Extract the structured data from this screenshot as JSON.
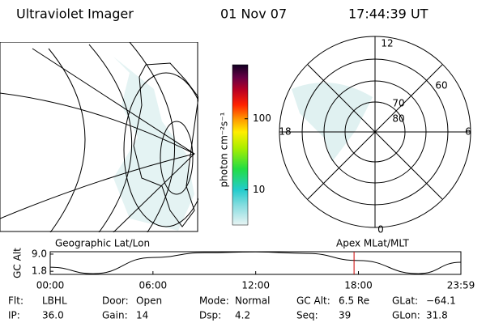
{
  "header": {
    "instrument": "Ultraviolet Imager",
    "date": "01 Nov 07",
    "time": "17:44:39 UT"
  },
  "colorbar": {
    "label": "photon cm⁻²s⁻¹",
    "scale": "log",
    "lim": [
      3.2,
      575
    ],
    "ticks": [
      10,
      100
    ]
  },
  "polar": {
    "mlt_labels": [
      "12",
      "6",
      "0",
      "18"
    ],
    "lat_labels": [
      60,
      70,
      80
    ]
  },
  "panel_labels": {
    "left": "Geographic Lat/Lon",
    "right": "Apex MLat/MLT"
  },
  "altitude_chart": {
    "type": "line",
    "y_label": "GC Alt",
    "x": [
      0,
      2.5,
      6,
      9,
      12,
      15,
      18,
      21.5,
      23.983
    ],
    "values": [
      3.5,
      0.8,
      7.6,
      9.6,
      9.9,
      9.3,
      6.3,
      0.8,
      5.6
    ],
    "xlim": [
      0,
      23.983
    ],
    "ylim": [
      0.5,
      10
    ],
    "xticks": [
      {
        "value": 0,
        "label": "00:00"
      },
      {
        "value": 6,
        "label": "06:00"
      },
      {
        "value": 12,
        "label": "12:00"
      },
      {
        "value": 18,
        "label": "18:00"
      },
      {
        "value": 23.983,
        "label": "23:59"
      }
    ],
    "yticks": [
      {
        "value": 9,
        "label": "9.0"
      },
      1.8
    ],
    "marker": 17.744,
    "marker_color": "#cc0000"
  },
  "info": [
    [
      [
        "Flt:",
        "LBHL"
      ],
      [
        "Door:",
        "Open"
      ],
      [
        "Mode:",
        "Normal"
      ],
      [
        "GC Alt:",
        "6.5 Re"
      ],
      [
        "GLat:",
        "−64.1"
      ]
    ],
    [
      [
        "IP:",
        "36.0"
      ],
      [
        "Gain:",
        "14"
      ],
      [
        "Dsp:",
        "4.2"
      ],
      [
        "Seq:",
        "39"
      ],
      [
        "GLon:",
        "31.8"
      ]
    ]
  ]
}
